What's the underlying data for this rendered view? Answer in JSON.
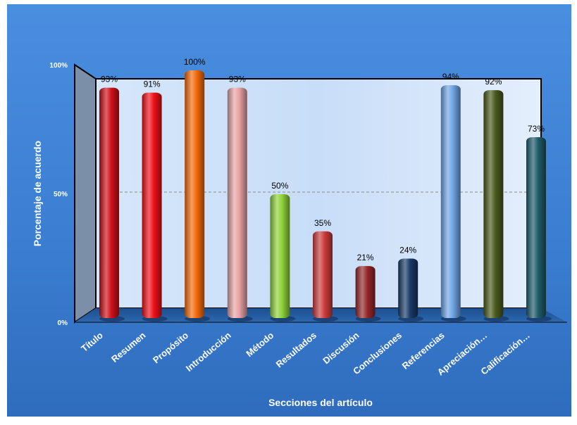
{
  "chart_data": {
    "type": "bar",
    "title": "",
    "xlabel": "Secciones del artículo",
    "ylabel": "Porcentaje de acuerdo",
    "ylim": [
      0,
      100
    ],
    "y_ticks": [
      "0%",
      "50%",
      "100%"
    ],
    "categories": [
      "Título",
      "Resumen",
      "Propósito",
      "Introducción",
      "Método",
      "Resultados",
      "Discusión",
      "Conclusiones",
      "Referencias",
      "Apreciación…",
      "Calificación…"
    ],
    "values": [
      93,
      91,
      100,
      93,
      50,
      35,
      21,
      24,
      94,
      92,
      73
    ],
    "value_labels": [
      "93%",
      "91%",
      "100%",
      "93%",
      "50%",
      "35%",
      "21%",
      "24%",
      "94%",
      "92%",
      "73%"
    ],
    "bar_colors": [
      "#d0101a",
      "#f01018",
      "#f46a0a",
      "#e8a2a4",
      "#8ed23a",
      "#cd3b3c",
      "#952628",
      "#1a3b66",
      "#6fa6e6",
      "#4a5a1c",
      "#1f5b6a"
    ],
    "grid": "dashed line at 50%",
    "legend": "none",
    "background": "#3d7fd0"
  }
}
